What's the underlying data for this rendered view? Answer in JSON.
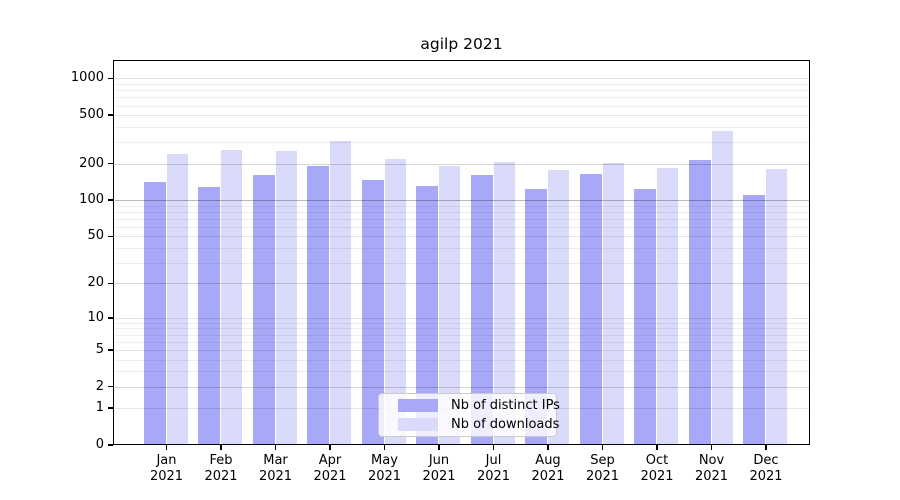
{
  "title": "agilp 2021",
  "legend": {
    "items": [
      {
        "label": "Nb of distinct IPs",
        "color": "#a8a8f8"
      },
      {
        "label": "Nb of downloads",
        "color": "#dadafa"
      }
    ]
  },
  "chart_data": {
    "type": "bar",
    "title": "agilp 2021",
    "categories": [
      "Jan 2021",
      "Feb 2021",
      "Mar 2021",
      "Apr 2021",
      "May 2021",
      "Jun 2021",
      "Jul 2021",
      "Aug 2021",
      "Sep 2021",
      "Oct 2021",
      "Nov 2021",
      "Dec 2021"
    ],
    "months": [
      "Jan",
      "Feb",
      "Mar",
      "Apr",
      "May",
      "Jun",
      "Jul",
      "Aug",
      "Sep",
      "Oct",
      "Nov",
      "Dec"
    ],
    "year": "2021",
    "series": [
      {
        "name": "Nb of distinct IPs",
        "color": "#a8a8f8",
        "values": [
          140,
          128,
          160,
          192,
          148,
          130,
          160,
          124,
          165,
          124,
          216,
          111
        ]
      },
      {
        "name": "Nb of downloads",
        "color": "#dadafa",
        "values": [
          241,
          261,
          255,
          310,
          220,
          190,
          208,
          178,
          201,
          184,
          370,
          182
        ]
      }
    ],
    "yscale": "log1p",
    "yticks": [
      0,
      1,
      2,
      5,
      10,
      20,
      50,
      100,
      200,
      500,
      1000
    ],
    "ylim": [
      0,
      1400
    ],
    "grid": true,
    "grid_minor_values": [
      2,
      3,
      4,
      6,
      7,
      8,
      9,
      20,
      30,
      40,
      60,
      70,
      80,
      90,
      200,
      300,
      400,
      600,
      700,
      800,
      900
    ],
    "grid_major_values": [
      1,
      2,
      5,
      10,
      20,
      50,
      100,
      200,
      500,
      1000
    ],
    "emphasized_gridline": 100,
    "legend_position": "lower center",
    "colors": {
      "grid_minor": "rgba(0,0,0,0.065)",
      "grid_major": "rgba(0,0,0,0.10)",
      "grid_emphasis": "rgba(0,0,0,0.27)"
    }
  }
}
